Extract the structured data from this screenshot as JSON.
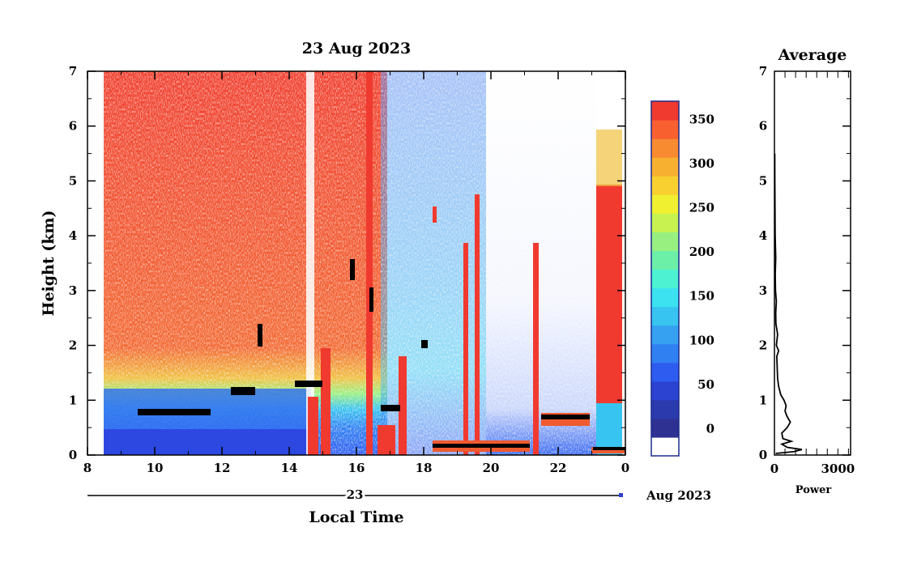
{
  "chart_data": [
    {
      "type": "heatmap",
      "title": "23 Aug 2023",
      "xlabel": "Local Time",
      "ylabel": "Height (km)",
      "date_axis_day_label": "23",
      "date_axis_month_label": "Aug 2023",
      "x_ticks": [
        "8",
        "10",
        "12",
        "14",
        "16",
        "18",
        "20",
        "22",
        "0"
      ],
      "x_range_hours": [
        8,
        24
      ],
      "y_ticks": [
        "0",
        "1",
        "2",
        "3",
        "4",
        "5",
        "6",
        "7"
      ],
      "ylim": [
        0,
        7
      ],
      "colorbar": {
        "tick_labels": [
          "0",
          "50",
          "100",
          "150",
          "200",
          "250",
          "300",
          "350"
        ],
        "range": [
          0,
          380
        ],
        "colors": [
          "#ffffff",
          "#2e3192",
          "#2b3aac",
          "#2c43d1",
          "#2f5cf0",
          "#3180f2",
          "#35a1f0",
          "#38c4f0",
          "#3ce2f0",
          "#4cf2d2",
          "#6cf0a8",
          "#98f080",
          "#c8f250",
          "#f0f030",
          "#f8d030",
          "#f8b030",
          "#f88a30",
          "#f86030",
          "#f03a30"
        ]
      },
      "grid": false
    },
    {
      "type": "line",
      "title": "Average",
      "xlabel": "Power",
      "ylabel": "",
      "x_ticks": [
        "0",
        "3000"
      ],
      "xlim": [
        0,
        3600
      ],
      "ylim": [
        0,
        7
      ],
      "y_ticks": [
        "0",
        "1",
        "2",
        "3",
        "4",
        "5",
        "6",
        "7"
      ],
      "series": [
        {
          "points": [
            [
              60,
              0.03
            ],
            [
              900,
              0.06
            ],
            [
              1300,
              0.1
            ],
            [
              600,
              0.14
            ],
            [
              350,
              0.2
            ],
            [
              800,
              0.25
            ],
            [
              400,
              0.3
            ],
            [
              350,
              0.4
            ],
            [
              600,
              0.5
            ],
            [
              750,
              0.6
            ],
            [
              600,
              0.7
            ],
            [
              500,
              0.8
            ],
            [
              550,
              0.9
            ],
            [
              450,
              1.0
            ],
            [
              300,
              1.1
            ],
            [
              200,
              1.25
            ],
            [
              150,
              1.4
            ],
            [
              130,
              1.6
            ],
            [
              110,
              1.8
            ],
            [
              200,
              1.9
            ],
            [
              90,
              2.0
            ],
            [
              150,
              2.2
            ],
            [
              70,
              2.4
            ],
            [
              60,
              2.6
            ],
            [
              90,
              2.8
            ],
            [
              50,
              3.0
            ],
            [
              40,
              3.3
            ],
            [
              60,
              3.6
            ],
            [
              35,
              4.0
            ],
            [
              25,
              4.5
            ],
            [
              20,
              5.0
            ],
            [
              15,
              5.5
            ]
          ]
        }
      ]
    }
  ]
}
